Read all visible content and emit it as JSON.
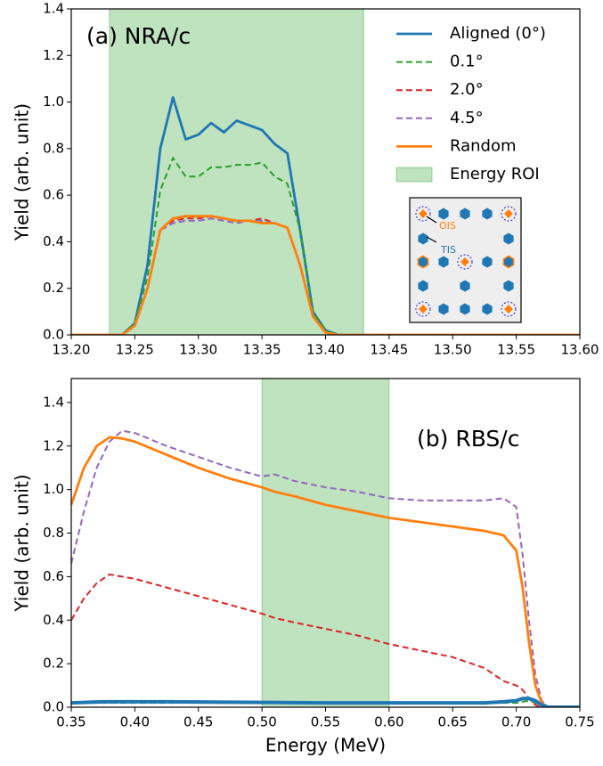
{
  "chart_data": [
    {
      "type": "line",
      "annotation": "(a) NRA/c",
      "ylabel": "Yield (arb. unit)",
      "x": [
        13.2,
        13.24,
        13.25,
        13.26,
        13.27,
        13.28,
        13.29,
        13.3,
        13.31,
        13.32,
        13.33,
        13.34,
        13.35,
        13.36,
        13.37,
        13.38,
        13.39,
        13.4,
        13.41,
        13.6
      ],
      "series": [
        {
          "name": "Aligned (0°)",
          "color": "#1f77b4",
          "dashed": false,
          "values": [
            0,
            0,
            0.05,
            0.3,
            0.8,
            1.02,
            0.84,
            0.86,
            0.91,
            0.87,
            0.92,
            0.9,
            0.88,
            0.82,
            0.78,
            0.45,
            0.1,
            0.02,
            0,
            0
          ]
        },
        {
          "name": "0.1°",
          "color": "#2ca02c",
          "dashed": true,
          "values": [
            0,
            0,
            0.05,
            0.25,
            0.62,
            0.76,
            0.68,
            0.68,
            0.72,
            0.72,
            0.73,
            0.73,
            0.74,
            0.68,
            0.65,
            0.45,
            0.1,
            0.02,
            0,
            0
          ]
        },
        {
          "name": "2.0°",
          "color": "#d62728",
          "dashed": true,
          "values": [
            0,
            0,
            0.04,
            0.2,
            0.45,
            0.49,
            0.5,
            0.5,
            0.51,
            0.5,
            0.49,
            0.49,
            0.5,
            0.48,
            0.46,
            0.3,
            0.08,
            0.01,
            0,
            0
          ]
        },
        {
          "name": "4.5°",
          "color": "#9467bd",
          "dashed": true,
          "values": [
            0,
            0,
            0.04,
            0.2,
            0.45,
            0.48,
            0.49,
            0.49,
            0.5,
            0.49,
            0.48,
            0.49,
            0.49,
            0.48,
            0.46,
            0.3,
            0.08,
            0.01,
            0,
            0
          ]
        },
        {
          "name": "Random",
          "color": "#ff7f0e",
          "dashed": false,
          "values": [
            0,
            0,
            0.04,
            0.2,
            0.45,
            0.5,
            0.51,
            0.51,
            0.51,
            0.5,
            0.49,
            0.49,
            0.48,
            0.48,
            0.46,
            0.3,
            0.08,
            0.01,
            0,
            0
          ]
        }
      ],
      "roi": [
        13.23,
        13.43
      ],
      "roi_label": "Energy ROI",
      "roi_color": "#2ca02c",
      "inset_labels": [
        "OIS",
        "TIS"
      ],
      "xlim": [
        13.2,
        13.6
      ],
      "xticks": [
        {
          "value": 13.2,
          "label": "13.20"
        },
        13.25,
        {
          "value": 13.3,
          "label": "13.30"
        },
        13.35,
        {
          "value": 13.4,
          "label": "13.40"
        },
        13.45,
        {
          "value": 13.5,
          "label": "13.50"
        },
        13.55,
        {
          "value": 13.6,
          "label": "13.60"
        }
      ],
      "ylim": [
        0,
        1.4
      ],
      "yticks": [
        {
          "value": 0,
          "label": "0.0"
        },
        0.2,
        0.4,
        0.6,
        0.8,
        {
          "value": 1,
          "label": "1.0"
        },
        1.2,
        1.4
      ],
      "legend": "upper right"
    },
    {
      "type": "line",
      "annotation": "(b) RBS/c",
      "ylabel": "Yield (arb. unit)",
      "xlabel": "Energy (MeV)",
      "x": [
        0.35,
        0.36,
        0.37,
        0.38,
        0.39,
        0.4,
        0.425,
        0.45,
        0.475,
        0.5,
        0.51,
        0.525,
        0.55,
        0.575,
        0.6,
        0.625,
        0.65,
        0.675,
        0.69,
        0.7,
        0.705,
        0.71,
        0.715,
        0.72,
        0.725,
        0.75
      ],
      "series": [
        {
          "color": "#9467bd",
          "dashed": true,
          "values": [
            0.66,
            0.9,
            1.1,
            1.22,
            1.27,
            1.26,
            1.2,
            1.15,
            1.1,
            1.06,
            1.07,
            1.04,
            1.01,
            0.99,
            0.96,
            0.95,
            0.95,
            0.95,
            0.96,
            0.92,
            0.7,
            0.4,
            0.15,
            0.03,
            0,
            0
          ]
        },
        {
          "color": "#d62728",
          "dashed": true,
          "values": [
            0.4,
            0.5,
            0.57,
            0.61,
            0.6,
            0.59,
            0.55,
            0.51,
            0.47,
            0.43,
            0.41,
            0.39,
            0.36,
            0.33,
            0.29,
            0.26,
            0.23,
            0.18,
            0.12,
            0.1,
            0.08,
            0.04,
            0.01,
            0,
            0,
            0
          ]
        },
        {
          "color": "#ff7f0e",
          "dashed": false,
          "values": [
            0.93,
            1.1,
            1.2,
            1.24,
            1.235,
            1.22,
            1.16,
            1.1,
            1.05,
            1.01,
            0.99,
            0.97,
            0.93,
            0.9,
            0.87,
            0.85,
            0.83,
            0.81,
            0.79,
            0.72,
            0.55,
            0.3,
            0.1,
            0.02,
            0,
            0
          ]
        },
        {
          "color": "#2ca02c",
          "dashed": true,
          "values": [
            0.02,
            0.02,
            0.02,
            0.02,
            0.02,
            0.02,
            0.02,
            0.02,
            0.02,
            0.02,
            0.02,
            0.02,
            0.02,
            0.02,
            0.02,
            0.02,
            0.02,
            0.02,
            0.02,
            0.02,
            0.025,
            0.03,
            0.02,
            0.01,
            0,
            0
          ]
        },
        {
          "color": "#1f77b4",
          "dashed": false,
          "values": [
            0.02,
            0.022,
            0.024,
            0.025,
            0.025,
            0.025,
            0.025,
            0.024,
            0.023,
            0.022,
            0.022,
            0.021,
            0.02,
            0.02,
            0.02,
            0.02,
            0.02,
            0.02,
            0.025,
            0.03,
            0.04,
            0.04,
            0.03,
            0.01,
            0,
            0
          ]
        }
      ],
      "roi": [
        0.5,
        0.6
      ],
      "roi_color": "#2ca02c",
      "xlim": [
        0.35,
        0.75
      ],
      "xticks": [
        0.35,
        {
          "value": 0.4,
          "label": "0.40"
        },
        0.45,
        {
          "value": 0.5,
          "label": "0.50"
        },
        0.55,
        {
          "value": 0.6,
          "label": "0.60"
        },
        0.65,
        {
          "value": 0.7,
          "label": "0.70"
        },
        0.75
      ],
      "ylim": [
        0,
        1.51
      ],
      "yticks": [
        {
          "value": 0,
          "label": "0.0"
        },
        0.2,
        0.4,
        0.6,
        0.8,
        {
          "value": 1,
          "label": "1.0"
        },
        1.2,
        1.4
      ]
    }
  ]
}
